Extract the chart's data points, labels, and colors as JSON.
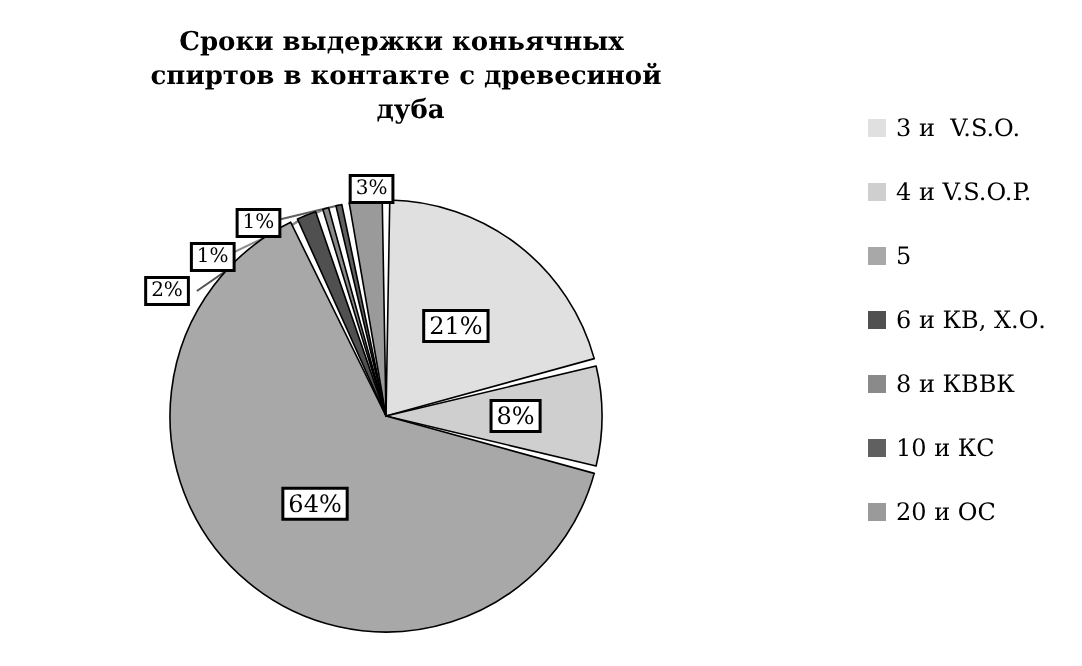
{
  "chart_data": {
    "type": "pie",
    "title": "Сроки выдержки коньячных спиртов в контакте с древесиной дуба",
    "categories": [
      "3 и  V.S.O.",
      "4 и V.S.O.P.",
      "5",
      "6 и КВ, Х.О.",
      "8 и КВВК",
      "10 и КС",
      "20 и ОС"
    ],
    "values": [
      21,
      8,
      64,
      2,
      1,
      1,
      3
    ],
    "colors": [
      "#e0e0e0",
      "#cfcfcf",
      "#a8a8a8",
      "#505050",
      "#8a8a8a",
      "#606060",
      "#9a9a9a"
    ],
    "value_labels": [
      "21%",
      "8%",
      "64%",
      "2%",
      "1%",
      "1%",
      "3%"
    ],
    "legend": "right"
  }
}
